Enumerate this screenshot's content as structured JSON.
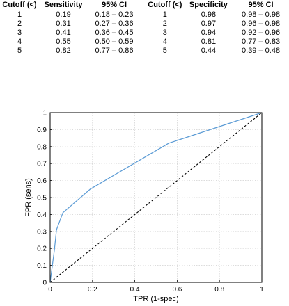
{
  "tables": [
    {
      "id": "sensitivity",
      "headers": [
        "Cutoff (<)",
        "Sensitivity",
        "95% CI"
      ],
      "rows": [
        [
          "1",
          "0.19",
          "0.18 – 0.23"
        ],
        [
          "2",
          "0.31",
          "0.27 – 0.36"
        ],
        [
          "3",
          "0.41",
          "0.36 – 0.45"
        ],
        [
          "4",
          "0.55",
          "0.50 – 0.59"
        ],
        [
          "5",
          "0.82",
          "0.77 – 0.86"
        ]
      ]
    },
    {
      "id": "specificity",
      "headers": [
        "Cutoff (<)",
        "Specificity",
        "95% CI"
      ],
      "rows": [
        [
          "1",
          "0.98",
          "0.98 – 0.98"
        ],
        [
          "2",
          "0.97",
          "0.96 – 0.98"
        ],
        [
          "3",
          "0.94",
          "0.92 – 0.96"
        ],
        [
          "4",
          "0.81",
          "0.77 – 0.83"
        ],
        [
          "5",
          "0.44",
          "0.39 – 0.48"
        ]
      ]
    }
  ],
  "chart_data": {
    "type": "line",
    "title": "",
    "xlabel": "TPR (1-spec)",
    "ylabel": "FPR (sens)",
    "xlim": [
      0,
      1
    ],
    "ylim": [
      0,
      1
    ],
    "x_ticks": [
      "0",
      "0.2",
      "0.4",
      "0.6",
      "0.8",
      "1"
    ],
    "y_ticks": [
      "0",
      "0.1",
      "0.2",
      "0.3",
      "0.4",
      "0.5",
      "0.6",
      "0.7",
      "0.8",
      "0.9",
      "1"
    ],
    "grid": true,
    "series": [
      {
        "style": "solid",
        "color": "#5b9bd5",
        "x": [
          0,
          0.02,
          0.03,
          0.06,
          0.19,
          0.56,
          1
        ],
        "y": [
          0,
          0.19,
          0.31,
          0.41,
          0.55,
          0.82,
          1
        ]
      },
      {
        "style": "dashed",
        "color": "#000000",
        "x": [
          0,
          1
        ],
        "y": [
          0,
          1
        ]
      }
    ]
  }
}
